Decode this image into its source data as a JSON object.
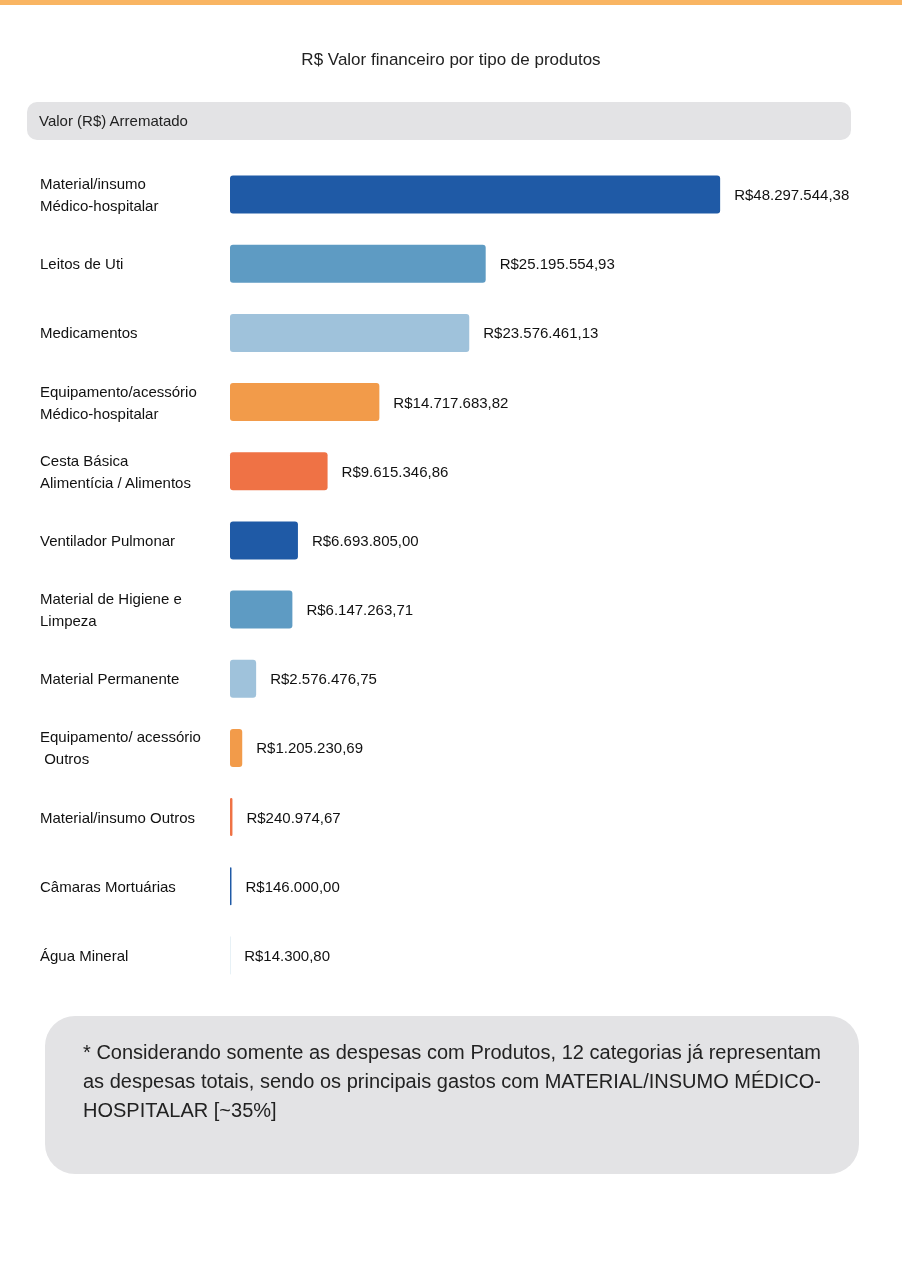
{
  "chart_data": {
    "type": "bar",
    "orientation": "horizontal",
    "title": "R$ Valor financeiro por tipo de produtos",
    "subtitle": "Valor (R$) Arrematado",
    "categories": [
      "Material/insumo Médico-hospitalar",
      "Leitos de Uti",
      "Medicamentos",
      "Equipamento/acessório Médico-hospitalar",
      "Cesta Básica Alimentícia / Alimentos",
      "Ventilador Pulmonar",
      "Material de Higiene e Limpeza",
      "Material Permanente",
      "Equipamento/ acessório Outros",
      "Material/insumo Outros",
      "Câmaras Mortuárias",
      "Água Mineral"
    ],
    "values": [
      48297544.38,
      25195554.93,
      23576461.13,
      14717683.82,
      9615346.86,
      6693805.0,
      6147263.71,
      2576476.75,
      1205230.69,
      240974.67,
      146000.0,
      14300.8
    ],
    "value_labels": [
      "R$48.297.544,38",
      "R$25.195.554,93",
      "R$23.576.461,13",
      "R$14.717.683,82",
      "R$9.615.346,86",
      "R$6.693.805,00",
      "R$6.147.263,71",
      "R$2.576.476,75",
      "R$1.205.230,69",
      "R$240.974,67",
      "R$146.000,00",
      "R$14.300,80"
    ],
    "colors": [
      "#1f5aa6",
      "#5e9bc3",
      "#9fc2db",
      "#f29b4a",
      "#ef7245",
      "#1f5aa6",
      "#5e9bc3",
      "#9fc2db",
      "#f29b4a",
      "#ef7245",
      "#1f5aa6",
      "#5e9bc3"
    ],
    "annotations": [
      "* Considerando somente as despesas com Produtos, 12 categorias já representam as despesas totais, sendo os principais gastos com MATERIAL/INSUMO MÉDICO-HOSPITALAR [~35%]"
    ],
    "grid": false
  }
}
